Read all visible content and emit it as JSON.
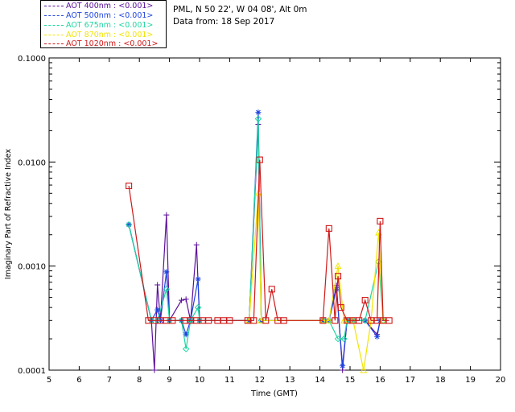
{
  "legend": {
    "items": [
      {
        "label": "AOT  400nm : <0.001>",
        "color": "#5a0f9a"
      },
      {
        "label": "AOT  500nm : <0.001>",
        "color": "#1f44e0"
      },
      {
        "label": "AOT  675nm : <0.001>",
        "color": "#1ed6a0"
      },
      {
        "label": "AOT  870nm : <0.001>",
        "color": "#f2e400"
      },
      {
        "label": "AOT 1020nm : <0.001>",
        "color": "#d01818"
      }
    ]
  },
  "station": {
    "line1": "PML, N 50 22', W 04 08', Alt 0m",
    "line2": "Data from: 18 Sep 2017"
  },
  "chart_data": {
    "type": "line",
    "title": "",
    "xlabel": "Time (GMT)",
    "ylabel": "Imaginary Part of Refractive Index",
    "yscale": "log",
    "xlim": [
      5,
      20
    ],
    "ylim": [
      0.0001,
      0.1
    ],
    "xticks": [
      "5",
      "6",
      "7",
      "8",
      "9",
      "10",
      "11",
      "12",
      "13",
      "14",
      "15",
      "16",
      "17",
      "18",
      "19",
      "20"
    ],
    "yticks": [
      {
        "value": 0.0001,
        "label": "0.0001"
      },
      {
        "value": 0.001,
        "label": "0.0010"
      },
      {
        "value": 0.01,
        "label": "0.0100"
      },
      {
        "value": 0.1,
        "label": "0.1000"
      }
    ],
    "series": [
      {
        "name": "AOT 400nm",
        "color": "#5a0f9a",
        "marker": "plus",
        "points": [
          [
            7.65,
            0.0025
          ],
          [
            8.4,
            0.0003
          ],
          [
            8.5,
            0.0001
          ],
          [
            8.6,
            0.00066
          ],
          [
            8.7,
            0.0003
          ],
          [
            8.9,
            0.0031
          ],
          [
            9.0,
            0.0003
          ],
          [
            9.4,
            0.00047
          ],
          [
            9.55,
            0.00048
          ],
          [
            9.7,
            0.0003
          ],
          [
            9.9,
            0.0016
          ],
          [
            10.0,
            0.0003
          ],
          [
            11.65,
            0.0003
          ],
          [
            11.95,
            0.023
          ],
          [
            12.05,
            0.0003
          ],
          [
            14.1,
            0.0003
          ],
          [
            14.3,
            0.0003
          ],
          [
            14.55,
            0.00065
          ],
          [
            14.75,
            0.0001
          ],
          [
            14.9,
            0.0003
          ],
          [
            15.1,
            0.0003
          ],
          [
            15.5,
            0.0003
          ],
          [
            15.9,
            0.00022
          ],
          [
            16.0,
            0.0003
          ]
        ]
      },
      {
        "name": "AOT 500nm",
        "color": "#1f44e0",
        "marker": "star",
        "points": [
          [
            7.65,
            0.0025
          ],
          [
            8.4,
            0.0003
          ],
          [
            8.6,
            0.00038
          ],
          [
            8.7,
            0.0003
          ],
          [
            8.9,
            0.00088
          ],
          [
            9.0,
            0.0003
          ],
          [
            9.4,
            0.0003
          ],
          [
            9.55,
            0.00022
          ],
          [
            9.7,
            0.0003
          ],
          [
            9.95,
            0.00075
          ],
          [
            10.0,
            0.0003
          ],
          [
            11.65,
            0.0003
          ],
          [
            11.95,
            0.03
          ],
          [
            12.05,
            0.0003
          ],
          [
            14.1,
            0.0003
          ],
          [
            14.3,
            0.0003
          ],
          [
            14.55,
            0.0006
          ],
          [
            14.75,
            0.00011
          ],
          [
            14.9,
            0.0003
          ],
          [
            15.1,
            0.0003
          ],
          [
            15.5,
            0.0003
          ],
          [
            15.9,
            0.00021
          ],
          [
            16.0,
            0.0003
          ]
        ]
      },
      {
        "name": "AOT 675nm",
        "color": "#1ed6a0",
        "marker": "diamond",
        "points": [
          [
            7.65,
            0.0025
          ],
          [
            8.4,
            0.0003
          ],
          [
            8.6,
            0.0003
          ],
          [
            8.9,
            0.0006
          ],
          [
            9.0,
            0.0003
          ],
          [
            9.4,
            0.0003
          ],
          [
            9.55,
            0.00016
          ],
          [
            9.7,
            0.0003
          ],
          [
            9.95,
            0.0004
          ],
          [
            10.0,
            0.0003
          ],
          [
            11.65,
            0.0003
          ],
          [
            11.95,
            0.026
          ],
          [
            12.05,
            0.0003
          ],
          [
            14.1,
            0.0003
          ],
          [
            14.3,
            0.0003
          ],
          [
            14.6,
            0.0002
          ],
          [
            14.8,
            0.0002
          ],
          [
            14.9,
            0.0003
          ],
          [
            15.1,
            0.0003
          ],
          [
            15.5,
            0.0003
          ],
          [
            15.95,
            0.0011
          ],
          [
            16.1,
            0.0003
          ]
        ]
      },
      {
        "name": "AOT 870nm",
        "color": "#f2e400",
        "marker": "triangle",
        "points": [
          [
            11.65,
            0.0003
          ],
          [
            11.95,
            0.005
          ],
          [
            12.05,
            0.0003
          ],
          [
            14.1,
            0.0003
          ],
          [
            14.3,
            0.0003
          ],
          [
            14.6,
            0.001
          ],
          [
            14.8,
            0.0003
          ],
          [
            15.1,
            0.0003
          ],
          [
            15.45,
            0.0001
          ],
          [
            15.7,
            0.0003
          ],
          [
            15.95,
            0.0021
          ],
          [
            16.1,
            0.0003
          ]
        ]
      },
      {
        "name": "AOT 1020nm",
        "color": "#d01818",
        "marker": "square",
        "points": [
          [
            7.65,
            0.0059
          ],
          [
            8.3,
            0.0003
          ],
          [
            8.5,
            0.0003
          ],
          [
            8.7,
            0.0003
          ],
          [
            8.9,
            0.0003
          ],
          [
            9.1,
            0.0003
          ],
          [
            9.5,
            0.0003
          ],
          [
            9.7,
            0.0003
          ],
          [
            9.9,
            0.0003
          ],
          [
            10.1,
            0.0003
          ],
          [
            10.3,
            0.0003
          ],
          [
            10.6,
            0.0003
          ],
          [
            10.8,
            0.0003
          ],
          [
            11.0,
            0.0003
          ],
          [
            11.6,
            0.0003
          ],
          [
            11.8,
            0.0003
          ],
          [
            12.0,
            0.0105
          ],
          [
            12.2,
            0.0003
          ],
          [
            12.4,
            0.0006
          ],
          [
            12.6,
            0.0003
          ],
          [
            12.8,
            0.0003
          ],
          [
            14.1,
            0.0003
          ],
          [
            14.3,
            0.0023
          ],
          [
            14.5,
            0.0003
          ],
          [
            14.6,
            0.0008
          ],
          [
            14.7,
            0.0004
          ],
          [
            14.9,
            0.0003
          ],
          [
            15.1,
            0.0003
          ],
          [
            15.3,
            0.0003
          ],
          [
            15.5,
            0.00047
          ],
          [
            15.7,
            0.0003
          ],
          [
            15.9,
            0.0003
          ],
          [
            16.0,
            0.0027
          ],
          [
            16.1,
            0.0003
          ],
          [
            16.3,
            0.0003
          ]
        ]
      }
    ]
  }
}
